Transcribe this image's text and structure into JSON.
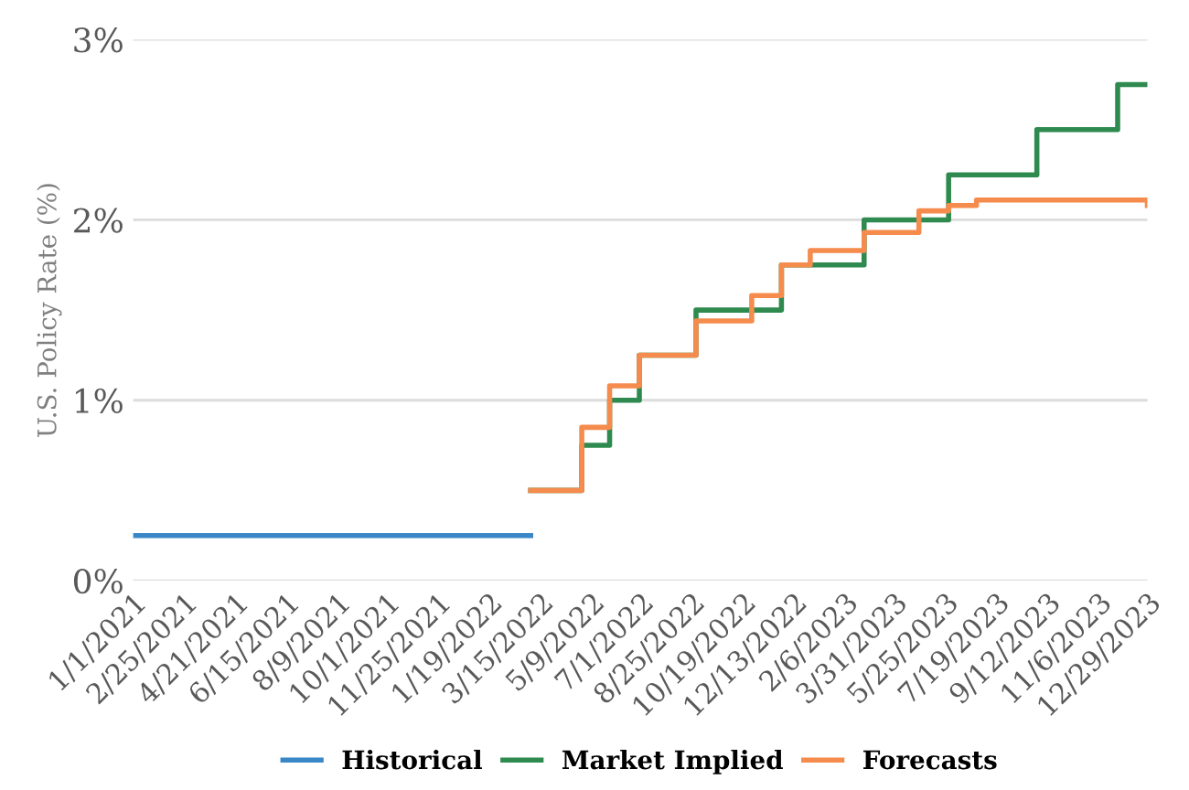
{
  "chart_data": {
    "type": "step",
    "ylabel": "U.S. Policy Rate (%)",
    "xlim": [
      "2021-01-01",
      "2023-12-29"
    ],
    "xticks": [
      {
        "value": "2021-01-01",
        "label": "1/1/2021"
      },
      {
        "value": "2021-02-25",
        "label": "2/25/2021"
      },
      {
        "value": "2021-04-21",
        "label": "4/21/2021"
      },
      {
        "value": "2021-06-15",
        "label": "6/15/2021"
      },
      {
        "value": "2021-08-09",
        "label": "8/9/2021"
      },
      {
        "value": "2021-10-01",
        "label": "10/1/2021"
      },
      {
        "value": "2021-11-25",
        "label": "11/25/2021"
      },
      {
        "value": "2022-01-19",
        "label": "1/19/2022"
      },
      {
        "value": "2022-03-15",
        "label": "3/15/2022"
      },
      {
        "value": "2022-05-09",
        "label": "5/9/2022"
      },
      {
        "value": "2022-07-01",
        "label": "7/1/2022"
      },
      {
        "value": "2022-08-25",
        "label": "8/25/2022"
      },
      {
        "value": "2022-10-19",
        "label": "10/19/2022"
      },
      {
        "value": "2022-12-13",
        "label": "12/13/2022"
      },
      {
        "value": "2023-02-06",
        "label": "2/6/2023"
      },
      {
        "value": "2023-03-31",
        "label": "3/31/2023"
      },
      {
        "value": "2023-05-25",
        "label": "5/25/2023"
      },
      {
        "value": "2023-07-19",
        "label": "7/19/2023"
      },
      {
        "value": "2023-09-12",
        "label": "9/12/2023"
      },
      {
        "value": "2023-11-06",
        "label": "11/6/2023"
      },
      {
        "value": "2023-12-29",
        "label": "12/29/2023"
      }
    ],
    "ylim": [
      0,
      3
    ],
    "yticks": [
      {
        "value": 0,
        "label": "0%"
      },
      {
        "value": 1,
        "label": "1%"
      },
      {
        "value": 2,
        "label": "2%"
      },
      {
        "value": 3,
        "label": "3%"
      }
    ],
    "grid": "y",
    "legend": "bottom",
    "series": [
      {
        "name": "Historical",
        "color": "#3a87c8",
        "x": [
          "2021-01-01",
          "2022-03-05"
        ],
        "values": [
          0.25,
          0.25
        ]
      },
      {
        "name": "Market Implied",
        "color": "#2f8a4f",
        "x": [
          "2022-03-05",
          "2022-04-29",
          "2022-05-29",
          "2022-06-30",
          "2022-08-30",
          "2022-11-30",
          "2023-02-27",
          "2023-05-29",
          "2023-09-01",
          "2023-11-27",
          "2023-12-29"
        ],
        "values": [
          0.5,
          0.75,
          1.0,
          1.25,
          1.5,
          1.75,
          2.0,
          2.25,
          2.5,
          2.75,
          2.75
        ]
      },
      {
        "name": "Forecasts",
        "color": "#f58b4c",
        "x": [
          "2022-03-05",
          "2022-04-29",
          "2022-05-29",
          "2022-06-30",
          "2022-08-30",
          "2022-10-29",
          "2022-11-30",
          "2022-12-31",
          "2023-02-27",
          "2023-04-27",
          "2023-05-29",
          "2023-06-28",
          "2023-08-15",
          "2023-10-15",
          "2023-12-29"
        ],
        "values": [
          0.5,
          0.85,
          1.08,
          1.25,
          1.44,
          1.58,
          1.75,
          1.83,
          1.93,
          2.05,
          2.08,
          2.11,
          2.11,
          2.11,
          2.08
        ]
      }
    ]
  }
}
